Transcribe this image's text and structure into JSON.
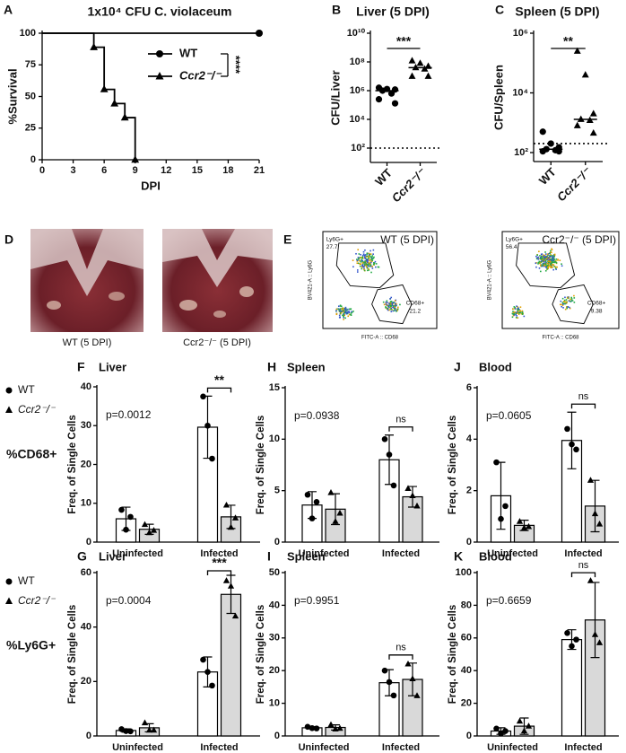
{
  "chart_data": [
    {
      "type": "survival",
      "panel": "A",
      "title": "1x10⁴ CFU C. violaceum",
      "xlabel": "DPI",
      "ylabel": "%Survival",
      "xlim": [
        0,
        21
      ],
      "xticks": [
        0,
        3,
        6,
        9,
        12,
        15,
        18,
        21
      ],
      "ylim": [
        0,
        100
      ],
      "yticks": [
        0,
        25,
        50,
        75,
        100
      ],
      "series": [
        {
          "name": "WT",
          "marker": "circle",
          "color": "#000000",
          "x": [
            0,
            21
          ],
          "values": [
            100,
            100
          ]
        },
        {
          "name": "Ccr2⁻/⁻",
          "marker": "triangle",
          "color": "#000000",
          "x": [
            0,
            5,
            6,
            7,
            8,
            9
          ],
          "values": [
            100,
            88.9,
            55.6,
            44.4,
            33.3,
            0
          ]
        }
      ],
      "annotation": "****"
    },
    {
      "type": "dot",
      "panel": "B",
      "title": "Liver (5 DPI)",
      "ylabel": "CFU/Liver",
      "yscale": "log",
      "ylim": [
        10,
        10000000000
      ],
      "yticks": [
        {
          "value": 100,
          "label": "10²"
        },
        {
          "value": 10000,
          "label": "10⁴"
        },
        {
          "value": 1000000,
          "label": "10⁶"
        },
        {
          "value": 100000000,
          "label": "10⁸"
        },
        {
          "value": 10000000000,
          "label": "10¹⁰"
        }
      ],
      "categories": [
        "WT",
        "Ccr2⁻/⁻"
      ],
      "markers": [
        "circle",
        "triangle"
      ],
      "values": [
        [
          1600000,
          1300000,
          1200000,
          1000000,
          630000,
          250000,
          130000
        ],
        [
          120000000,
          80000000,
          50000000,
          40000000,
          32000000,
          10000000,
          10000000
        ]
      ],
      "medians": [
        1000000,
        40000000
      ],
      "detection_limit": 100,
      "annotation": "***"
    },
    {
      "type": "dot",
      "panel": "C",
      "title": "Spleen (5 DPI)",
      "ylabel": "CFU/Spleen",
      "yscale": "log",
      "ylim": [
        50,
        1000000
      ],
      "yticks": [
        {
          "value": 100,
          "label": "10²"
        },
        {
          "value": 10000,
          "label": "10⁴"
        },
        {
          "value": 1000000,
          "label": "10⁶"
        }
      ],
      "categories": [
        "WT",
        "Ccr2⁻/⁻"
      ],
      "markers": [
        "circle",
        "triangle"
      ],
      "values": [
        [
          500,
          200,
          150,
          130,
          120,
          110,
          110
        ],
        [
          250000,
          40000,
          2000,
          1300,
          1200,
          800,
          450
        ]
      ],
      "medians": [
        130,
        1300
      ],
      "detection_limit": 200,
      "annotation": "**"
    },
    {
      "type": "bar",
      "panel": "F",
      "title": "Liver",
      "ylabel": "Freq. of Single Cells",
      "ylim": [
        0,
        40
      ],
      "yticks": [
        0,
        10,
        20,
        30,
        40
      ],
      "categories": [
        "Uninfected",
        "Infected"
      ],
      "p_value": "p=0.0012",
      "annotation": "**",
      "series": [
        {
          "name": "WT",
          "color": "#ffffff",
          "marker": "circle",
          "values": [
            6,
            29.6
          ],
          "errors": [
            3,
            8
          ],
          "points": [
            [
              8.3,
              3.2,
              6.5
            ],
            [
              37.5,
              30,
              21.5
            ]
          ]
        },
        {
          "name": "Ccr2⁻/⁻",
          "color": "#d9d9d9",
          "marker": "triangle",
          "values": [
            3.3,
            6.5
          ],
          "errors": [
            1.3,
            3
          ],
          "points": [
            [
              4.5,
              2.4,
              3.0
            ],
            [
              9.5,
              3.8,
              6.2
            ]
          ]
        }
      ]
    },
    {
      "type": "bar",
      "panel": "H",
      "title": "Spleen",
      "ylabel": "Freq. of Single Cells",
      "ylim": [
        0,
        15
      ],
      "yticks": [
        0,
        5,
        10,
        15
      ],
      "categories": [
        "Uninfected",
        "Infected"
      ],
      "p_value": "p=0.0938",
      "annotation": "ns",
      "series": [
        {
          "name": "WT",
          "color": "#ffffff",
          "marker": "circle",
          "values": [
            3.6,
            8
          ],
          "errors": [
            1.3,
            2.4
          ],
          "points": [
            [
              4.6,
              2.3,
              3.9
            ],
            [
              10,
              8.5,
              5.5
            ]
          ]
        },
        {
          "name": "Ccr2⁻/⁻",
          "color": "#d9d9d9",
          "marker": "triangle",
          "values": [
            3.2,
            4.4
          ],
          "errors": [
            1.5,
            1
          ],
          "points": [
            [
              4.8,
              2.0,
              2.8
            ],
            [
              5.2,
              4.5,
              3.5
            ]
          ]
        }
      ]
    },
    {
      "type": "bar",
      "panel": "J",
      "title": "Blood",
      "ylabel": "Freq. of Single Cells",
      "ylim": [
        0,
        6
      ],
      "yticks": [
        0,
        2,
        4,
        6
      ],
      "categories": [
        "Uninfected",
        "Infected"
      ],
      "p_value": "p=0.0605",
      "annotation": "ns",
      "series": [
        {
          "name": "WT",
          "color": "#ffffff",
          "marker": "circle",
          "values": [
            1.8,
            3.95
          ],
          "errors": [
            1.3,
            1.1
          ],
          "points": [
            [
              3.1,
              0.9,
              1.4
            ],
            [
              4.4,
              3.8,
              3.6
            ]
          ]
        },
        {
          "name": "Ccr2⁻/⁻",
          "color": "#d9d9d9",
          "marker": "triangle",
          "values": [
            0.65,
            1.4
          ],
          "errors": [
            0.2,
            1
          ],
          "points": [
            [
              0.8,
              0.55,
              0.6
            ],
            [
              2.4,
              1.1,
              0.7
            ]
          ]
        }
      ]
    },
    {
      "type": "bar",
      "panel": "G",
      "title": "Liver",
      "ylabel": "Freq. of Single Cells",
      "ylim": [
        0,
        60
      ],
      "yticks": [
        0,
        20,
        40,
        60
      ],
      "categories": [
        "Uninfected",
        "Infected"
      ],
      "p_value": "p=0.0004",
      "annotation": "***",
      "series": [
        {
          "name": "WT",
          "color": "#ffffff",
          "marker": "circle",
          "values": [
            2,
            23.5
          ],
          "errors": [
            0.6,
            5.5
          ],
          "points": [
            [
              2.5,
              1.8,
              1.7
            ],
            [
              28,
              23.5,
              18.5
            ]
          ]
        },
        {
          "name": "Ccr2⁻/⁻",
          "color": "#d9d9d9",
          "marker": "triangle",
          "values": [
            3,
            52
          ],
          "errors": [
            1.5,
            7
          ],
          "points": [
            [
              4.8,
              2.1,
              2.1
            ],
            [
              57,
              55,
              44
            ]
          ]
        }
      ]
    },
    {
      "type": "bar",
      "panel": "I",
      "title": "Spleen",
      "ylabel": "Freq. of Single Cells",
      "ylim": [
        0,
        50
      ],
      "yticks": [
        0,
        10,
        20,
        30,
        40,
        50
      ],
      "categories": [
        "Uninfected",
        "Infected"
      ],
      "p_value": "p=0.9951",
      "annotation": "ns",
      "series": [
        {
          "name": "WT",
          "color": "#ffffff",
          "marker": "circle",
          "values": [
            2.5,
            16.3
          ],
          "errors": [
            0.3,
            4
          ],
          "points": [
            [
              2.8,
              2.4,
              2.3
            ],
            [
              20,
              16.5,
              12.4
            ]
          ]
        },
        {
          "name": "Ccr2⁻/⁻",
          "color": "#d9d9d9",
          "marker": "triangle",
          "values": [
            2.6,
            17.3
          ],
          "errors": [
            0.8,
            5
          ],
          "points": [
            [
              3.4,
              2.1,
              2.3
            ],
            [
              22,
              17.5,
              12.3
            ]
          ]
        }
      ]
    },
    {
      "type": "bar",
      "panel": "K",
      "title": "Blood",
      "ylabel": "Freq. of Single Cells",
      "ylim": [
        0,
        100
      ],
      "yticks": [
        0,
        20,
        40,
        60,
        80,
        100
      ],
      "categories": [
        "Uninfected",
        "Infected"
      ],
      "p_value": "p=0.6659",
      "annotation": "ns",
      "series": [
        {
          "name": "WT",
          "color": "#ffffff",
          "marker": "circle",
          "values": [
            3,
            59
          ],
          "errors": [
            2,
            6
          ],
          "points": [
            [
              4.5,
              1.5,
              3
            ],
            [
              63,
              55,
              59
            ]
          ]
        },
        {
          "name": "Ccr2⁻/⁻",
          "color": "#d9d9d9",
          "marker": "triangle",
          "values": [
            6,
            71
          ],
          "errors": [
            5,
            23
          ],
          "points": [
            [
              9,
              3,
              6
            ],
            [
              95,
              62,
              57
            ]
          ]
        }
      ]
    }
  ],
  "row_labels": [
    "%CD68+",
    "%Ly6G+"
  ],
  "photos": {
    "panel": "D",
    "captions": [
      "WT (5 DPI)",
      "Ccr2⁻/⁻ (5 DPI)"
    ]
  },
  "flow": {
    "panel": "E",
    "plots": [
      {
        "title": "WT (5 DPI)",
        "xlabel": "FITC-A :: CD68",
        "ylabel": "BV421-A :: Ly6G",
        "gates": [
          {
            "name": "Ly6G+",
            "value": 27.7
          },
          {
            "name": "CD68+",
            "value": 21.2
          }
        ]
      },
      {
        "title": "Ccr2⁻/⁻ (5 DPI)",
        "xlabel": "FITC-A :: CD68",
        "ylabel": "BV421-A :: Ly6G",
        "gates": [
          {
            "name": "Ly6G+",
            "value": 56.4
          },
          {
            "name": "CD68+",
            "value": 9.38
          }
        ]
      }
    ]
  }
}
